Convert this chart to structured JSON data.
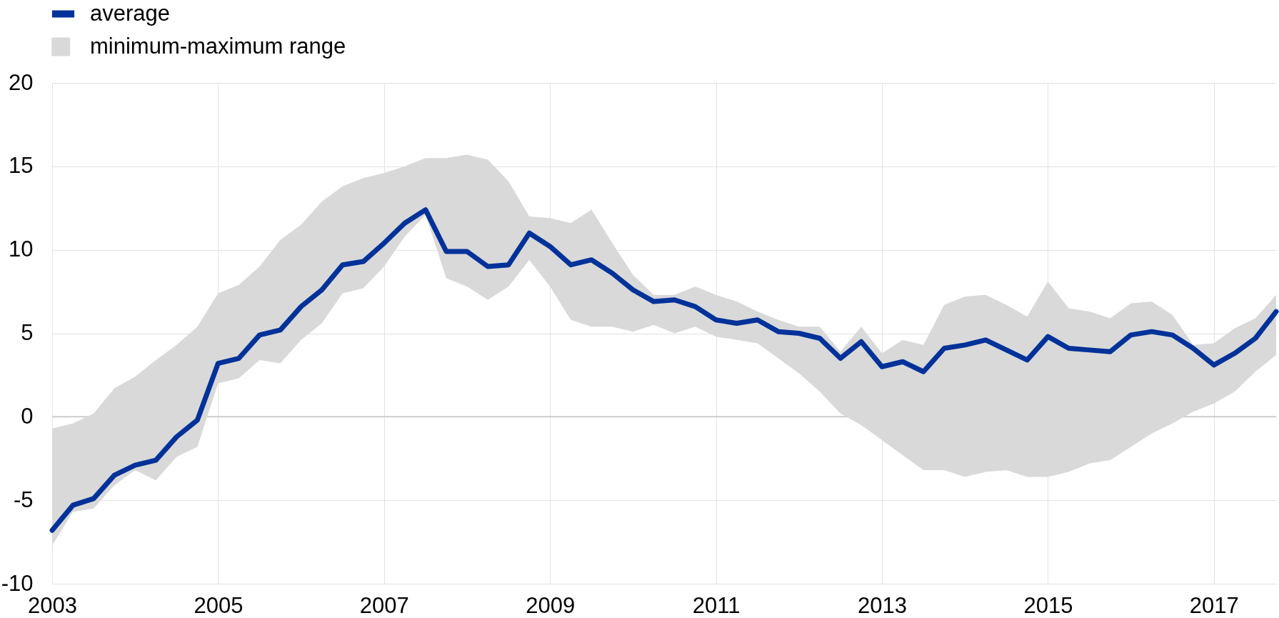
{
  "chart_data": {
    "type": "line",
    "x": [
      2003,
      2003.25,
      2003.5,
      2003.75,
      2004,
      2004.25,
      2004.5,
      2004.75,
      2005,
      2005.25,
      2005.5,
      2005.75,
      2006,
      2006.25,
      2006.5,
      2006.75,
      2007,
      2007.25,
      2007.5,
      2007.75,
      2008,
      2008.25,
      2008.5,
      2008.75,
      2009,
      2009.25,
      2009.5,
      2009.75,
      2010,
      2010.25,
      2010.5,
      2010.75,
      2011,
      2011.25,
      2011.5,
      2011.75,
      2012,
      2012.25,
      2012.5,
      2012.75,
      2013,
      2013.25,
      2013.5,
      2013.75,
      2014,
      2014.25,
      2014.5,
      2014.75,
      2015,
      2015.25,
      2015.5,
      2015.75,
      2016,
      2016.25,
      2016.5,
      2016.75,
      2017,
      2017.25,
      2017.5,
      2017.75
    ],
    "series": [
      {
        "name": "average",
        "color": "#003299",
        "values": [
          -6.8,
          -5.3,
          -4.9,
          -3.5,
          -2.9,
          -2.6,
          -1.2,
          -0.2,
          3.2,
          3.5,
          4.9,
          5.2,
          6.6,
          7.6,
          9.1,
          9.3,
          10.4,
          11.6,
          12.4,
          9.9,
          9.9,
          9.0,
          9.1,
          11.0,
          10.2,
          9.1,
          9.4,
          8.6,
          7.6,
          6.9,
          7.0,
          6.6,
          5.8,
          5.6,
          5.8,
          5.1,
          5.0,
          4.7,
          3.5,
          4.5,
          3.0,
          3.3,
          2.7,
          4.1,
          4.3,
          4.6,
          4.0,
          3.4,
          4.8,
          4.1,
          4.0,
          3.9,
          4.9,
          5.1,
          4.9,
          4.1,
          3.1,
          3.8,
          4.7,
          6.3
        ]
      },
      {
        "name": "minimum-maximum range",
        "color": "#d9d9d9",
        "values": [
          null,
          null,
          null,
          null,
          null,
          null,
          null,
          null,
          null,
          null,
          null,
          null,
          null,
          null,
          null,
          null,
          null,
          null,
          null,
          null,
          null,
          null,
          null,
          null,
          null,
          null,
          null,
          null,
          null,
          null,
          null,
          null,
          null,
          null,
          null,
          null,
          null,
          null,
          null,
          null,
          null,
          null,
          null,
          null,
          null,
          null,
          null,
          null,
          null,
          null,
          null,
          null,
          null,
          null,
          null,
          null,
          null,
          null,
          null,
          null
        ],
        "lower": [
          -7.7,
          -5.7,
          -5.5,
          -4.1,
          -3.2,
          -3.8,
          -2.4,
          -1.8,
          2.0,
          2.3,
          3.4,
          3.2,
          4.6,
          5.6,
          7.4,
          7.7,
          9.0,
          10.8,
          12.1,
          8.3,
          7.8,
          7.0,
          7.8,
          9.4,
          7.8,
          5.8,
          5.4,
          5.4,
          5.1,
          5.5,
          5.0,
          5.4,
          4.8,
          4.6,
          4.4,
          3.5,
          2.6,
          1.5,
          0.2,
          -0.5,
          -1.4,
          -2.3,
          -3.2,
          -3.2,
          -3.6,
          -3.3,
          -3.2,
          -3.6,
          -3.6,
          -3.3,
          -2.8,
          -2.6,
          -1.8,
          -1.0,
          -0.4,
          0.3,
          0.8,
          1.5,
          2.7,
          3.7
        ],
        "upper": [
          -0.7,
          -0.4,
          0.2,
          1.7,
          2.4,
          3.4,
          4.3,
          5.4,
          7.4,
          7.9,
          9.0,
          10.6,
          11.5,
          12.9,
          13.8,
          14.3,
          14.6,
          15.0,
          15.5,
          15.5,
          15.7,
          15.4,
          14.1,
          12.0,
          11.9,
          11.6,
          12.4,
          10.4,
          8.5,
          7.3,
          7.3,
          7.8,
          7.3,
          6.9,
          6.3,
          5.8,
          5.4,
          5.4,
          3.9,
          5.4,
          3.8,
          4.6,
          4.3,
          6.7,
          7.2,
          7.3,
          6.7,
          6.0,
          8.1,
          6.5,
          6.3,
          5.9,
          6.8,
          6.9,
          6.1,
          4.3,
          4.4,
          5.3,
          5.9,
          7.3
        ]
      }
    ],
    "xlim": [
      2003,
      2017.75
    ],
    "xticks": [
      2003,
      2005,
      2007,
      2009,
      2011,
      2013,
      2015,
      2017
    ],
    "ylim": [
      -10,
      20
    ],
    "yticks": [
      -10,
      -5,
      0,
      5,
      10,
      15,
      20
    ],
    "ref_lines": [
      {
        "axis": "y",
        "value": 0,
        "color": "#cccccc"
      }
    ],
    "grid": true,
    "legend": "top left",
    "line_style": "solid"
  }
}
